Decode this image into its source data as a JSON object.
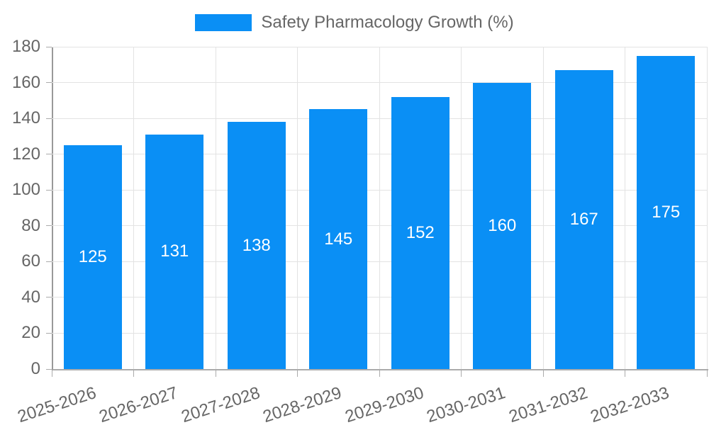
{
  "chart_data": {
    "type": "bar",
    "title": "Safety Pharmacology Growth (%)",
    "legend": {
      "label": "Safety Pharmacology Growth (%)",
      "position": "top"
    },
    "categories": [
      "2025-2026",
      "2026-2027",
      "2027-2028",
      "2028-2029",
      "2029-2030",
      "2030-2031",
      "2031-2032",
      "2032-2033"
    ],
    "values": [
      125,
      131,
      138,
      145,
      152,
      160,
      167,
      175
    ],
    "value_labels": [
      "125",
      "131",
      "138",
      "145",
      "152",
      "160",
      "167",
      "175"
    ],
    "xlabel": "",
    "ylabel": "",
    "ylim": [
      0,
      180
    ],
    "yticks": [
      0,
      20,
      40,
      60,
      80,
      100,
      120,
      140,
      160,
      180
    ],
    "grid": true,
    "colors": {
      "bar": "#0A8FF5",
      "value_label": "#ffffff",
      "axis_text": "#666666",
      "grid_line": "#e3e3e3",
      "axis_line": "#999999"
    }
  }
}
